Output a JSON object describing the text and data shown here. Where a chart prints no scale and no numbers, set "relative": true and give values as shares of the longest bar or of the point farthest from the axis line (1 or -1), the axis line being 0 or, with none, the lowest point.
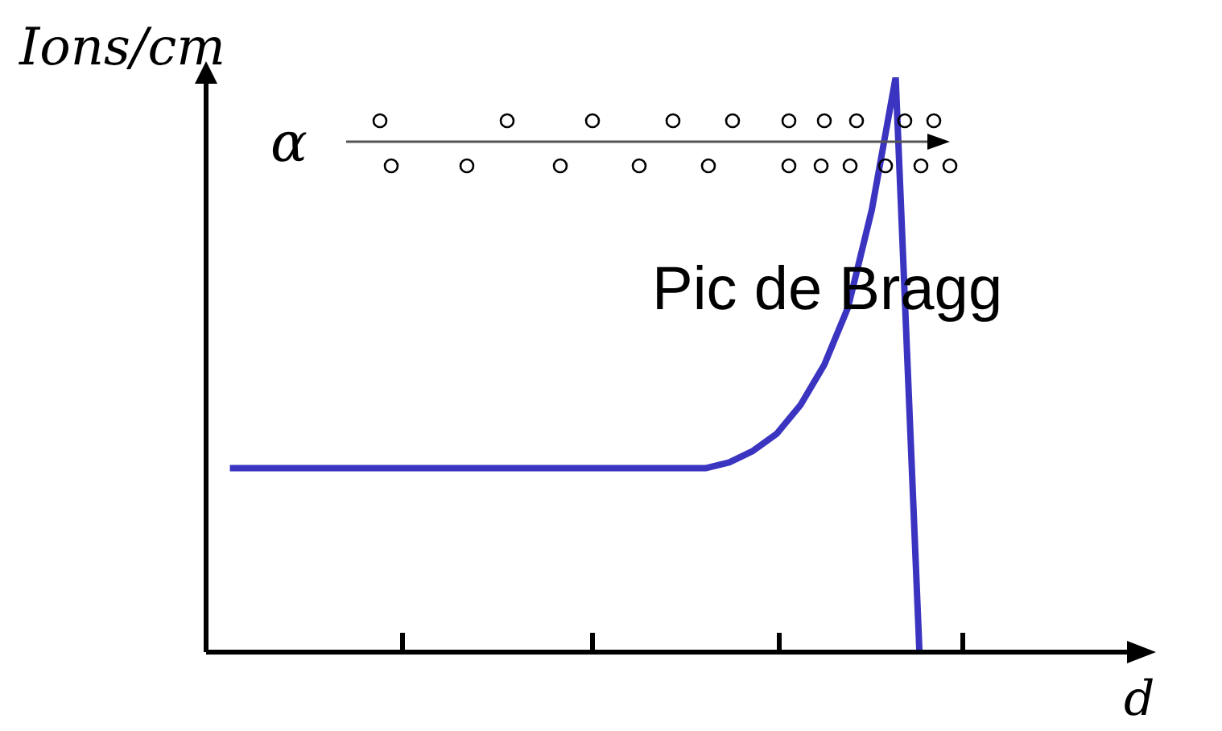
{
  "chart_data": {
    "type": "line",
    "relative": true,
    "ylabel": "Ions/cm",
    "xlabel": "d",
    "annotations": [
      "α",
      "Pic de Bragg"
    ],
    "categories": [
      null,
      null,
      null,
      null,
      null,
      null,
      null,
      null,
      null,
      null,
      null,
      null,
      null,
      null,
      null,
      null,
      null,
      null,
      null,
      null,
      null,
      null,
      null,
      null,
      null,
      null,
      null,
      null,
      null,
      null,
      null,
      null,
      null,
      null,
      null,
      null,
      null,
      null,
      null,
      null
    ],
    "series": [
      {
        "color": "#3a34c0",
        "values": [
          null,
          0.32,
          0.32,
          0.32,
          0.32,
          0.32,
          0.32,
          0.32,
          0.32,
          0.32,
          0.32,
          0.32,
          0.32,
          0.32,
          0.32,
          0.32,
          0.32,
          0.32,
          0.32,
          0.32,
          0.32,
          0.32,
          0.33,
          0.35,
          0.38,
          0.43,
          0.5,
          0.6,
          0.77,
          1,
          0,
          null,
          null,
          null,
          null,
          null,
          null,
          null,
          null,
          null
        ]
      }
    ],
    "marker": "none",
    "line_style": "solid"
  }
}
